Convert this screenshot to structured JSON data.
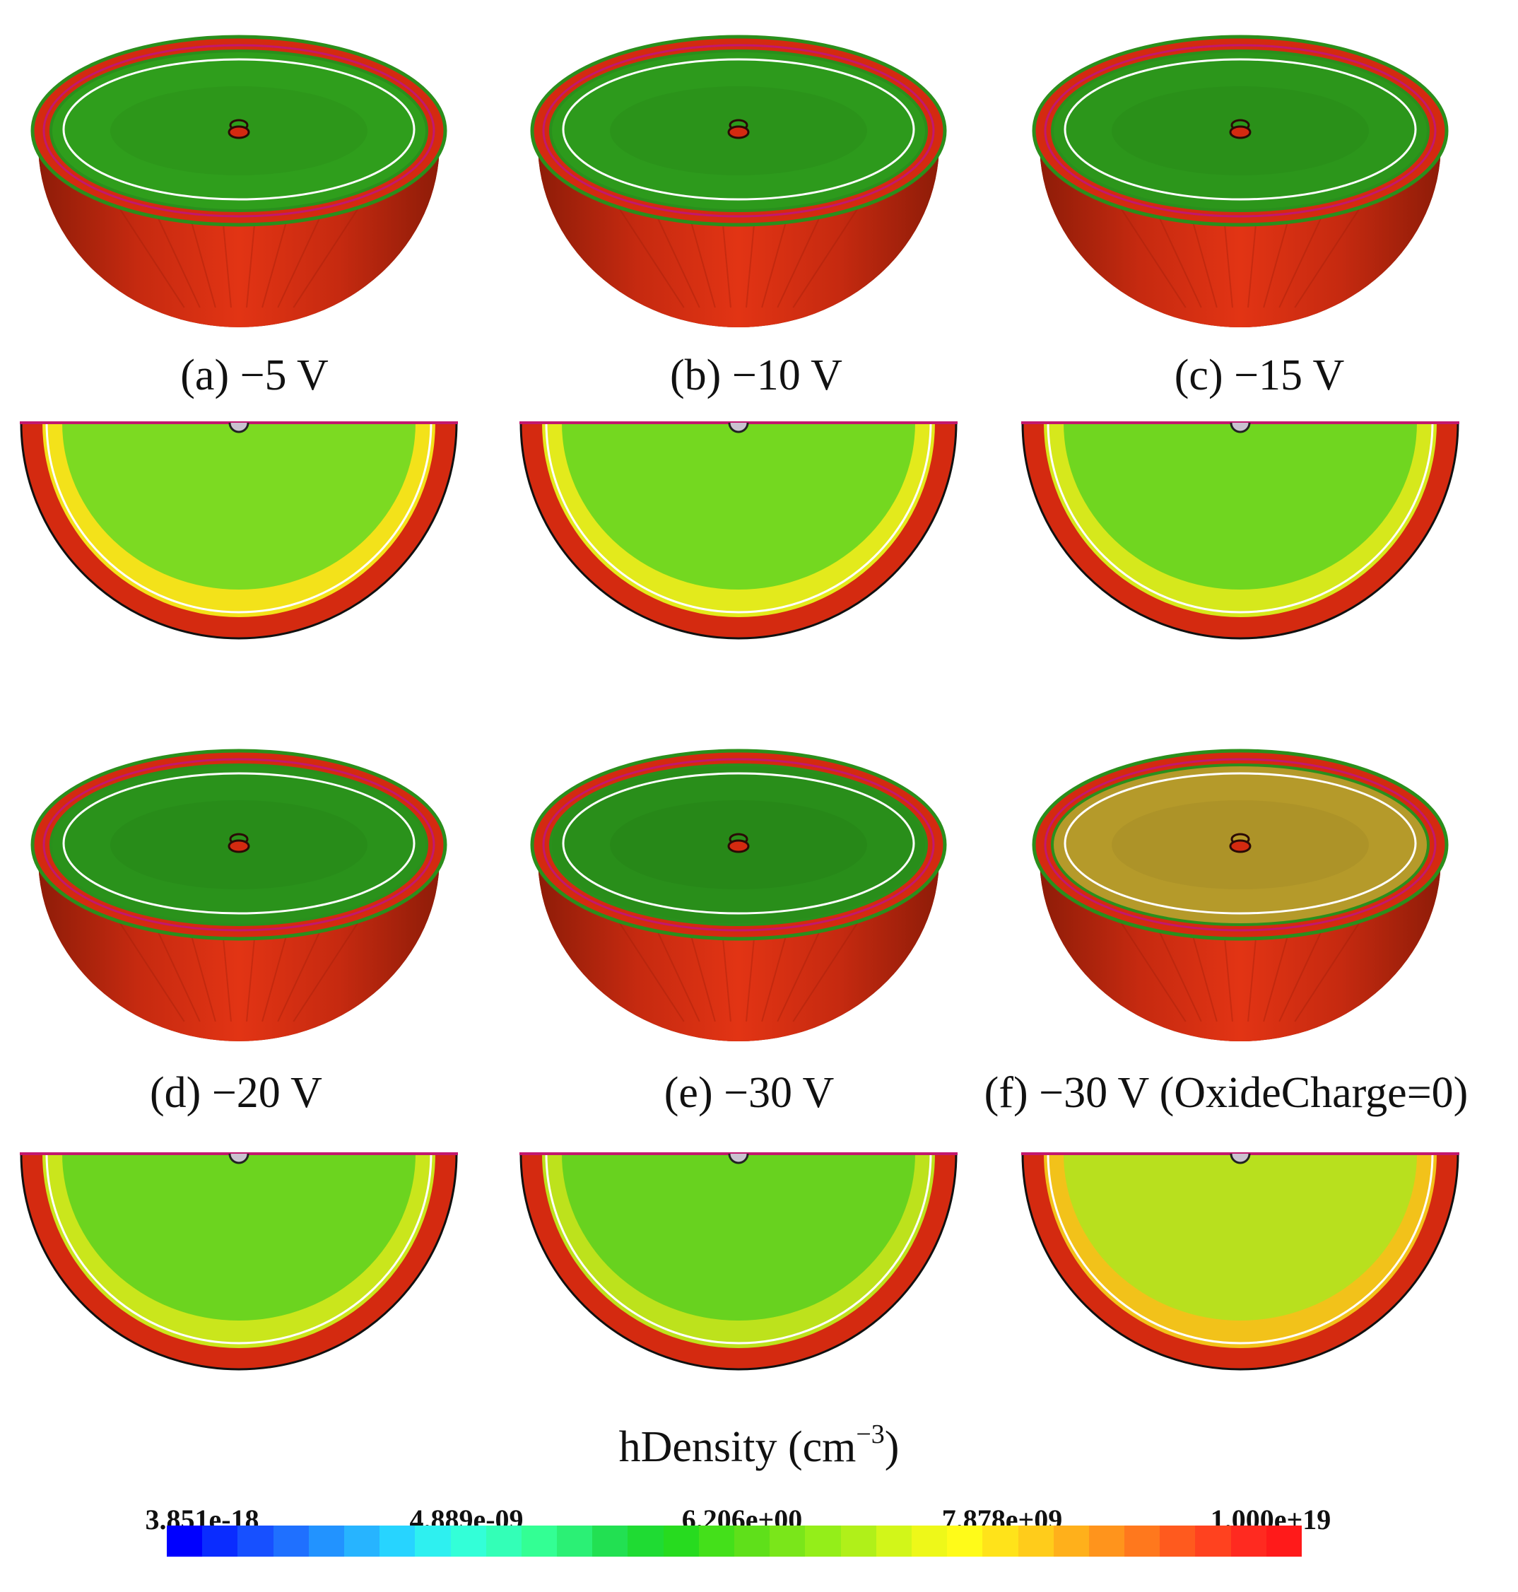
{
  "figure": {
    "panels": [
      {
        "label": "(a) −5 V",
        "top_view_color": "#2f9e1c",
        "section_mid_color": "#7cda22",
        "section_inner_color": "#f3e21a"
      },
      {
        "label": "(b) −10 V",
        "top_view_color": "#2d9a1c",
        "section_mid_color": "#74d820",
        "section_inner_color": "#e3ea1c"
      },
      {
        "label": "(c) −15 V",
        "top_view_color": "#2c961b",
        "section_mid_color": "#70d620",
        "section_inner_color": "#d6e81c"
      },
      {
        "label": "(d) −20 V",
        "top_view_color": "#2a921b",
        "section_mid_color": "#6cd41f",
        "section_inner_color": "#cae61c"
      },
      {
        "label": "(e) −30 V",
        "top_view_color": "#298e1a",
        "section_mid_color": "#68d21f",
        "section_inner_color": "#bde21c"
      },
      {
        "label": "(f) −30 V (OxideCharge=0)",
        "top_view_color": "#b59a2a",
        "section_mid_color": "#b8e01e",
        "section_inner_color": "#f2c21a"
      }
    ],
    "colorbar": {
      "title": "hDensity (cm",
      "title_exponent": "−3",
      "title_suffix": ")",
      "tick_labels": [
        "3.851e-18",
        "4.889e-09",
        "6.206e+00",
        "7.878e+09",
        "1.000e+19"
      ],
      "colors": [
        "#0000ff",
        "#0a2cff",
        "#1750ff",
        "#1f70ff",
        "#2293ff",
        "#27b4ff",
        "#27d4ff",
        "#2ef0f0",
        "#33ffd8",
        "#33ffb7",
        "#33ff94",
        "#2bf075",
        "#22e052",
        "#1fdb33",
        "#27db1f",
        "#44e01a",
        "#5fe01a",
        "#7ae61a",
        "#94ee19",
        "#b0f019",
        "#d2f619",
        "#eef819",
        "#fffb19",
        "#ffe31a",
        "#ffcc1b",
        "#ffb01b",
        "#ff941c",
        "#ff781d",
        "#ff5a1e",
        "#ff421f",
        "#ff2a20",
        "#ff1a1a"
      ],
      "scale": "log"
    },
    "colors": {
      "shell_red": "#d42a10",
      "shell_dark": "#8a1a08",
      "outer_ring": "#2a8f1c",
      "white_line": "#ffffff"
    }
  }
}
